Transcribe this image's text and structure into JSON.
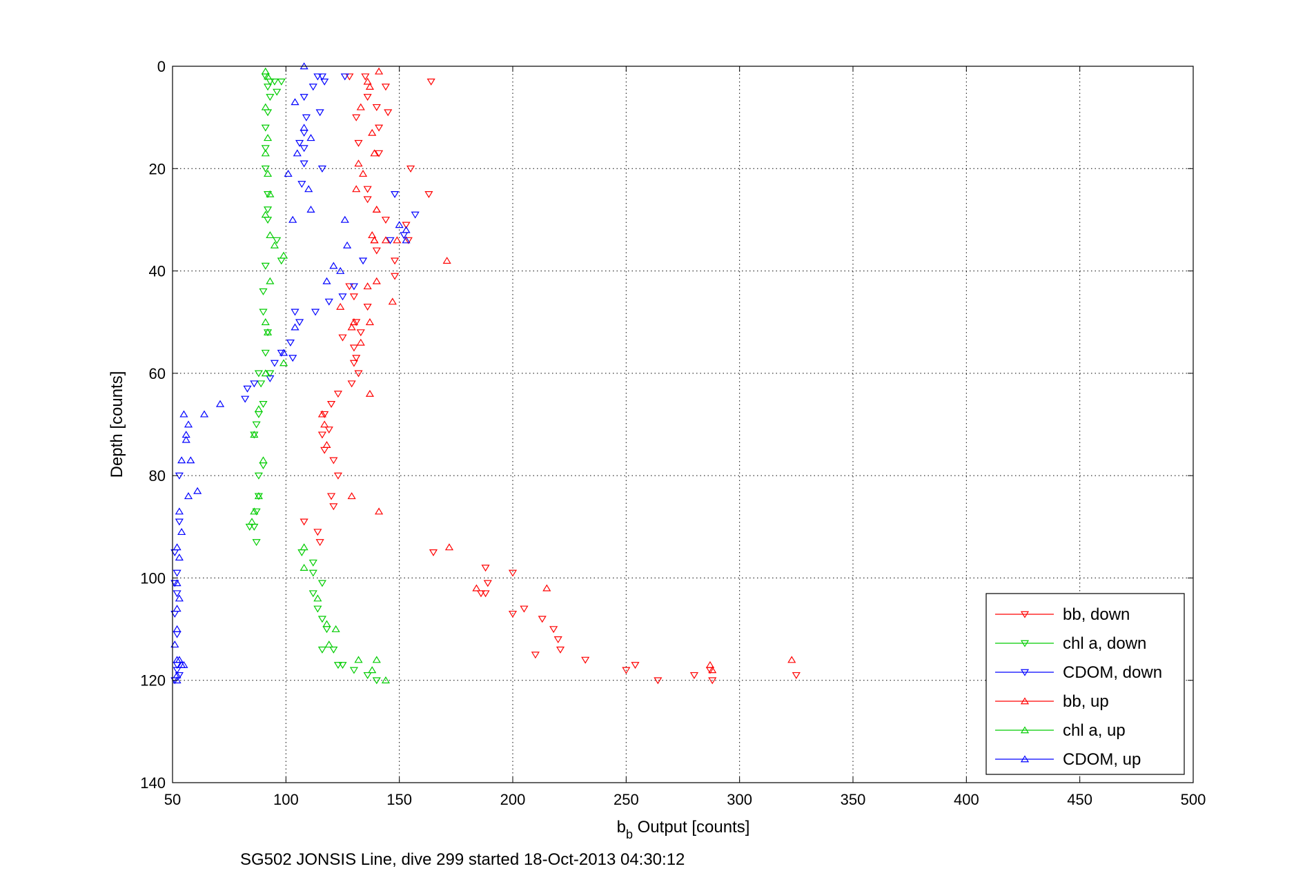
{
  "chart_data": {
    "type": "scatter",
    "title": "",
    "xlabel_main": "b",
    "xlabel_sub": "b",
    "xlabel_rest": " Output [counts]",
    "ylabel": "Depth [counts]",
    "caption": "SG502 JONSIS Line, dive 299 started 18-Oct-2013 04:30:12",
    "xlim": [
      50,
      500
    ],
    "ylim": [
      0,
      140
    ],
    "y_reversed": true,
    "grid": true,
    "xticks": [
      "50",
      "100",
      "150",
      "200",
      "250",
      "300",
      "350",
      "400",
      "450",
      "500"
    ],
    "yticks": [
      "0",
      "20",
      "40",
      "60",
      "80",
      "100",
      "120",
      "140"
    ],
    "legend_position": "bottom-right",
    "series": [
      {
        "name": "bb, down",
        "color": "#ff0000",
        "marker": "triangle-down",
        "points": [
          [
            128,
            2
          ],
          [
            135,
            2
          ],
          [
            164,
            3
          ],
          [
            144,
            4
          ],
          [
            136,
            6
          ],
          [
            140,
            8
          ],
          [
            145,
            9
          ],
          [
            131,
            10
          ],
          [
            141,
            12
          ],
          [
            132,
            15
          ],
          [
            141,
            17
          ],
          [
            155,
            20
          ],
          [
            136,
            24
          ],
          [
            163,
            25
          ],
          [
            136,
            26
          ],
          [
            144,
            30
          ],
          [
            153,
            31
          ],
          [
            154,
            34
          ],
          [
            140,
            36
          ],
          [
            148,
            38
          ],
          [
            148,
            41
          ],
          [
            128,
            43
          ],
          [
            130,
            45
          ],
          [
            136,
            47
          ],
          [
            131,
            50
          ],
          [
            133,
            52
          ],
          [
            125,
            53
          ],
          [
            130,
            55
          ],
          [
            131,
            57
          ],
          [
            130,
            58
          ],
          [
            132,
            60
          ],
          [
            129,
            62
          ],
          [
            123,
            64
          ],
          [
            120,
            66
          ],
          [
            117,
            68
          ],
          [
            119,
            71
          ],
          [
            116,
            72
          ],
          [
            117,
            75
          ],
          [
            121,
            77
          ],
          [
            123,
            80
          ],
          [
            120,
            84
          ],
          [
            121,
            86
          ],
          [
            108,
            89
          ],
          [
            114,
            91
          ],
          [
            115,
            93
          ],
          [
            165,
            95
          ],
          [
            188,
            98
          ],
          [
            189,
            101
          ],
          [
            200,
            99
          ],
          [
            186,
            103
          ],
          [
            188,
            103
          ],
          [
            200,
            107
          ],
          [
            205,
            106
          ],
          [
            213,
            108
          ],
          [
            218,
            110
          ],
          [
            220,
            112
          ],
          [
            221,
            114
          ],
          [
            210,
            115
          ],
          [
            232,
            116
          ],
          [
            250,
            118
          ],
          [
            254,
            117
          ],
          [
            280,
            119
          ],
          [
            287,
            118
          ],
          [
            264,
            120
          ],
          [
            288,
            120
          ],
          [
            325,
            119
          ]
        ]
      },
      {
        "name": "chl a, down",
        "color": "#00cc00",
        "marker": "triangle-down",
        "points": [
          [
            91,
            2
          ],
          [
            93,
            3
          ],
          [
            92,
            4
          ],
          [
            95,
            3
          ],
          [
            98,
            3
          ],
          [
            96,
            5
          ],
          [
            93,
            6
          ],
          [
            92,
            9
          ],
          [
            91,
            12
          ],
          [
            91,
            16
          ],
          [
            91,
            20
          ],
          [
            92,
            25
          ],
          [
            92,
            28
          ],
          [
            92,
            30
          ],
          [
            96,
            34
          ],
          [
            98,
            38
          ],
          [
            91,
            39
          ],
          [
            90,
            44
          ],
          [
            90,
            48
          ],
          [
            92,
            52
          ],
          [
            91,
            56
          ],
          [
            93,
            60
          ],
          [
            88,
            60
          ],
          [
            89,
            62
          ],
          [
            90,
            66
          ],
          [
            88,
            68
          ],
          [
            87,
            70
          ],
          [
            86,
            72
          ],
          [
            90,
            78
          ],
          [
            88,
            80
          ],
          [
            88,
            84
          ],
          [
            87,
            87
          ],
          [
            86,
            90
          ],
          [
            84,
            90
          ],
          [
            87,
            93
          ],
          [
            107,
            95
          ],
          [
            112,
            97
          ],
          [
            112,
            99
          ],
          [
            116,
            101
          ],
          [
            112,
            103
          ],
          [
            114,
            106
          ],
          [
            116,
            108
          ],
          [
            118,
            110
          ],
          [
            116,
            114
          ],
          [
            121,
            114
          ],
          [
            123,
            117
          ],
          [
            125,
            117
          ],
          [
            130,
            118
          ],
          [
            136,
            119
          ],
          [
            140,
            120
          ]
        ]
      },
      {
        "name": "CDOM, down",
        "color": "#0000ff",
        "marker": "triangle-down",
        "points": [
          [
            126,
            2
          ],
          [
            116,
            2
          ],
          [
            117,
            3
          ],
          [
            114,
            2
          ],
          [
            112,
            4
          ],
          [
            108,
            6
          ],
          [
            115,
            9
          ],
          [
            109,
            10
          ],
          [
            108,
            13
          ],
          [
            106,
            15
          ],
          [
            108,
            16
          ],
          [
            108,
            19
          ],
          [
            107,
            23
          ],
          [
            116,
            20
          ],
          [
            148,
            25
          ],
          [
            157,
            29
          ],
          [
            152,
            33
          ],
          [
            146,
            34
          ],
          [
            134,
            38
          ],
          [
            130,
            43
          ],
          [
            125,
            45
          ],
          [
            119,
            46
          ],
          [
            113,
            48
          ],
          [
            104,
            48
          ],
          [
            106,
            50
          ],
          [
            102,
            54
          ],
          [
            103,
            57
          ],
          [
            98,
            56
          ],
          [
            95,
            58
          ],
          [
            93,
            61
          ],
          [
            86,
            62
          ],
          [
            83,
            63
          ],
          [
            82,
            65
          ],
          [
            53,
            80
          ],
          [
            53,
            89
          ],
          [
            51,
            95
          ],
          [
            52,
            99
          ],
          [
            51,
            101
          ],
          [
            52,
            103
          ],
          [
            51,
            107
          ],
          [
            52,
            111
          ],
          [
            52,
            117
          ],
          [
            51,
            120
          ],
          [
            53,
            119
          ],
          [
            52,
            118
          ]
        ]
      },
      {
        "name": "bb, up",
        "color": "#ff0000",
        "marker": "triangle-up",
        "points": [
          [
            141,
            1
          ],
          [
            136,
            3
          ],
          [
            137,
            4
          ],
          [
            133,
            8
          ],
          [
            138,
            13
          ],
          [
            139,
            17
          ],
          [
            132,
            19
          ],
          [
            134,
            21
          ],
          [
            131,
            24
          ],
          [
            140,
            28
          ],
          [
            140,
            28
          ],
          [
            139,
            34
          ],
          [
            144,
            34
          ],
          [
            149,
            34
          ],
          [
            139,
            34
          ],
          [
            138,
            33
          ],
          [
            171,
            38
          ],
          [
            140,
            42
          ],
          [
            136,
            43
          ],
          [
            147,
            46
          ],
          [
            124,
            47
          ],
          [
            130,
            50
          ],
          [
            129,
            51
          ],
          [
            137,
            50
          ],
          [
            133,
            54
          ],
          [
            137,
            64
          ],
          [
            116,
            68
          ],
          [
            117,
            70
          ],
          [
            118,
            74
          ],
          [
            129,
            84
          ],
          [
            141,
            87
          ],
          [
            172,
            94
          ],
          [
            184,
            102
          ],
          [
            215,
            102
          ],
          [
            287,
            117
          ],
          [
            323,
            116
          ],
          [
            288,
            118
          ]
        ]
      },
      {
        "name": "chl a, up",
        "color": "#00cc00",
        "marker": "triangle-up",
        "points": [
          [
            91,
            1
          ],
          [
            92,
            2
          ],
          [
            91,
            8
          ],
          [
            92,
            14
          ],
          [
            91,
            17
          ],
          [
            92,
            21
          ],
          [
            93,
            25
          ],
          [
            91,
            29
          ],
          [
            93,
            33
          ],
          [
            95,
            35
          ],
          [
            99,
            37
          ],
          [
            93,
            42
          ],
          [
            91,
            50
          ],
          [
            92,
            52
          ],
          [
            99,
            58
          ],
          [
            91,
            60
          ],
          [
            88,
            67
          ],
          [
            86,
            72
          ],
          [
            90,
            77
          ],
          [
            88,
            84
          ],
          [
            86,
            87
          ],
          [
            85,
            89
          ],
          [
            108,
            94
          ],
          [
            108,
            98
          ],
          [
            114,
            104
          ],
          [
            118,
            109
          ],
          [
            122,
            110
          ],
          [
            119,
            113
          ],
          [
            132,
            116
          ],
          [
            140,
            116
          ],
          [
            138,
            118
          ],
          [
            144,
            120
          ]
        ]
      },
      {
        "name": "CDOM, up",
        "color": "#0000ff",
        "marker": "triangle-up",
        "points": [
          [
            108,
            0
          ],
          [
            104,
            7
          ],
          [
            108,
            12
          ],
          [
            111,
            14
          ],
          [
            105,
            17
          ],
          [
            101,
            21
          ],
          [
            110,
            24
          ],
          [
            111,
            28
          ],
          [
            103,
            30
          ],
          [
            150,
            31
          ],
          [
            153,
            32
          ],
          [
            153,
            34
          ],
          [
            126,
            30
          ],
          [
            127,
            35
          ],
          [
            121,
            39
          ],
          [
            124,
            40
          ],
          [
            118,
            42
          ],
          [
            104,
            51
          ],
          [
            99,
            56
          ],
          [
            71,
            66
          ],
          [
            64,
            68
          ],
          [
            55,
            68
          ],
          [
            57,
            70
          ],
          [
            56,
            72
          ],
          [
            56,
            73
          ],
          [
            54,
            77
          ],
          [
            58,
            77
          ],
          [
            61,
            83
          ],
          [
            57,
            84
          ],
          [
            53,
            87
          ],
          [
            54,
            91
          ],
          [
            52,
            94
          ],
          [
            53,
            96
          ],
          [
            52,
            101
          ],
          [
            53,
            104
          ],
          [
            52,
            106
          ],
          [
            52,
            110
          ],
          [
            51,
            113
          ],
          [
            52,
            116
          ],
          [
            53,
            116
          ],
          [
            54,
            117
          ],
          [
            55,
            117
          ],
          [
            52,
            119
          ],
          [
            52,
            120
          ]
        ]
      }
    ]
  }
}
